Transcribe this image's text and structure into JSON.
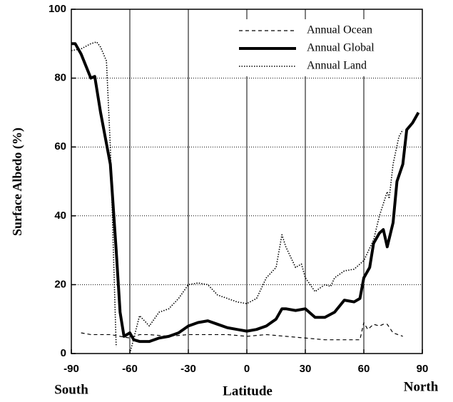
{
  "chart_data": {
    "type": "line",
    "xlabel": "Latitude",
    "ylabel": "Surface Albedo (%)",
    "x_end_labels": [
      "South",
      "North"
    ],
    "xlim": [
      -90,
      90
    ],
    "xticks": [
      -90,
      -60,
      -30,
      0,
      30,
      60,
      90
    ],
    "ylim": [
      0,
      100
    ],
    "yticks": [
      0,
      20,
      40,
      60,
      80,
      100
    ],
    "grid": true,
    "legend": "upper right",
    "series": [
      {
        "name": "Annual Ocean",
        "color": "#000",
        "style": "dashed",
        "width": 1.2,
        "x": [
          -85,
          -80,
          -75,
          -70,
          -65,
          -60,
          -55,
          -50,
          -40,
          -30,
          -20,
          -10,
          0,
          10,
          20,
          30,
          40,
          50,
          58,
          60,
          62,
          65,
          68,
          70,
          72,
          75,
          80
        ],
        "values": [
          6,
          5.5,
          5.5,
          5.5,
          5,
          4.5,
          5.5,
          5.5,
          5,
          5.5,
          5.5,
          5.5,
          5,
          5.5,
          5,
          4.5,
          4,
          4,
          4,
          9,
          7,
          8.5,
          8,
          8.5,
          8.5,
          6,
          5
        ]
      },
      {
        "name": "Annual Global",
        "color": "#000",
        "style": "solid",
        "width": 4,
        "x": [
          -90,
          -88,
          -85,
          -80,
          -78,
          -75,
          -70,
          -67,
          -65,
          -63,
          -60,
          -58,
          -55,
          -50,
          -45,
          -40,
          -35,
          -30,
          -25,
          -20,
          -15,
          -10,
          -5,
          0,
          5,
          10,
          15,
          18,
          20,
          25,
          30,
          35,
          40,
          45,
          50,
          55,
          58,
          60,
          63,
          65,
          68,
          70,
          72,
          75,
          77,
          80,
          82,
          85,
          88
        ],
        "values": [
          90,
          90,
          87,
          80,
          80.5,
          70,
          55,
          30,
          12,
          5,
          6,
          4,
          3.5,
          3.5,
          4.5,
          5,
          6,
          8,
          9,
          9.5,
          8.5,
          7.5,
          7,
          6.5,
          7,
          8,
          10,
          13,
          13,
          12.5,
          13,
          10.5,
          10.5,
          12,
          15.5,
          15,
          16,
          22,
          25,
          32,
          35,
          36,
          31,
          38,
          50,
          55,
          65,
          67,
          70
        ]
      },
      {
        "name": "Annual Land",
        "color": "#000",
        "style": "dotted",
        "width": 1.6,
        "x": [
          -90,
          -85,
          -80,
          -77,
          -75,
          -72,
          -70,
          -67,
          -65,
          -60,
          -55,
          -50,
          -45,
          -40,
          -35,
          -30,
          -25,
          -20,
          -15,
          -10,
          -5,
          0,
          5,
          10,
          15,
          18,
          20,
          25,
          28,
          30,
          35,
          40,
          43,
          45,
          50,
          55,
          60,
          65,
          68,
          72,
          73,
          75,
          78,
          80
        ],
        "values": [
          88,
          88.5,
          90,
          90.5,
          89,
          85,
          60,
          2,
          null,
          0,
          11,
          8,
          12,
          13,
          16,
          20,
          20.5,
          20,
          17,
          16,
          15,
          14.5,
          16,
          22,
          25,
          34.5,
          31,
          25,
          26,
          22,
          18,
          20,
          19.5,
          22,
          24,
          24.5,
          27,
          33,
          40,
          47,
          45,
          55,
          63,
          65
        ]
      }
    ]
  }
}
